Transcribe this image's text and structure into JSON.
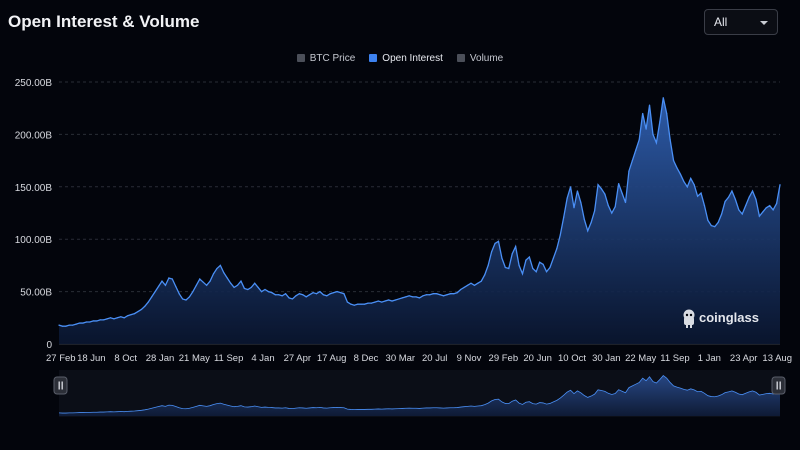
{
  "header": {
    "title": "Open Interest & Volume"
  },
  "range_select": {
    "value": "All"
  },
  "legend": [
    {
      "label": "BTC Price",
      "color": "#4b4f59",
      "active": false
    },
    {
      "label": "Open Interest",
      "color": "#3d82f0",
      "active": true
    },
    {
      "label": "Volume",
      "color": "#4b4f59",
      "active": false
    }
  ],
  "watermark": {
    "text": "coinglass"
  },
  "colors": {
    "line": "#4a8ff5",
    "fill_top": "#2f5fb0",
    "fill_bottom": "#0a1630",
    "grid": "#2a2d36",
    "axis_text": "#d8dae0"
  },
  "chart_data": {
    "type": "area",
    "xlabel": "",
    "ylabel": "",
    "ylim": [
      0,
      250
    ],
    "y_ticks": [
      0,
      50,
      100,
      150,
      200,
      250
    ],
    "y_tick_labels": [
      "0",
      "50.00B",
      "100.00B",
      "150.00B",
      "200.00B",
      "250.00B"
    ],
    "x_tick_labels": [
      "27 Feb",
      "18 Jun",
      "8 Oct",
      "28 Jan",
      "21 May",
      "11 Sep",
      "4 Jan",
      "27 Apr",
      "17 Aug",
      "8 Dec",
      "30 Mar",
      "20 Jul",
      "9 Nov",
      "29 Feb",
      "20 Jun",
      "10 Oct",
      "30 Jan",
      "22 May",
      "11 Sep",
      "1 Jan",
      "23 Apr",
      "13 Aug"
    ],
    "grid": true,
    "series": [
      {
        "name": "Open Interest",
        "unit": "B",
        "x": [
          0,
          1,
          2,
          3,
          4,
          5,
          6,
          7,
          8,
          9,
          10,
          11,
          12,
          13,
          14,
          15,
          16,
          17,
          18,
          19,
          20,
          21,
          22,
          23,
          24,
          25,
          26,
          27,
          28,
          29,
          30,
          31,
          32,
          33,
          34,
          35,
          36,
          37,
          38,
          39,
          40,
          41,
          42,
          43,
          44,
          45,
          46,
          47,
          48,
          49,
          50,
          51,
          52,
          53,
          54,
          55,
          56,
          57,
          58,
          59,
          60,
          61,
          62,
          63,
          64,
          65,
          66,
          67,
          68,
          69,
          70,
          71,
          72,
          73,
          74,
          75,
          76,
          77,
          78,
          79,
          80,
          81,
          82,
          83,
          84,
          85,
          86,
          87,
          88,
          89,
          90,
          91,
          92,
          93,
          94,
          95,
          96,
          97,
          98,
          99,
          100,
          101,
          102,
          103,
          104,
          105,
          106,
          107,
          108,
          109,
          110,
          111,
          112,
          113,
          114,
          115,
          116,
          117,
          118,
          119,
          120,
          121,
          122,
          123,
          124,
          125,
          126,
          127,
          128,
          129,
          130,
          131,
          132,
          133,
          134,
          135,
          136,
          137,
          138,
          139,
          140,
          141,
          142,
          143,
          144,
          145,
          146,
          147,
          148,
          149,
          150,
          151,
          152,
          153,
          154,
          155,
          156,
          157,
          158,
          159,
          160,
          161,
          162,
          163,
          164,
          165,
          166,
          167,
          168,
          169,
          170,
          171,
          172,
          173,
          174,
          175,
          176,
          177,
          178,
          179,
          180,
          181,
          182,
          183,
          184,
          185,
          186,
          187,
          188,
          189,
          190,
          191,
          192,
          193,
          194,
          195,
          196,
          197,
          198,
          199,
          200,
          201,
          202,
          203,
          204,
          205,
          206,
          207,
          208,
          209,
          210
        ],
        "values": [
          18,
          17,
          17,
          18,
          18,
          19,
          20,
          20,
          21,
          21,
          22,
          22,
          23,
          23,
          24,
          25,
          24,
          25,
          26,
          25,
          27,
          28,
          29,
          31,
          33,
          36,
          40,
          45,
          50,
          55,
          60,
          56,
          63,
          62,
          55,
          48,
          43,
          42,
          45,
          50,
          56,
          62,
          59,
          56,
          60,
          67,
          72,
          75,
          68,
          63,
          58,
          54,
          56,
          60,
          53,
          52,
          54,
          58,
          54,
          50,
          52,
          50,
          49,
          47,
          47,
          46,
          48,
          44,
          43,
          46,
          48,
          47,
          45,
          47,
          49,
          48,
          50,
          47,
          46,
          48,
          49,
          50,
          49,
          48,
          40,
          38,
          37,
          38,
          38,
          38,
          39,
          39,
          40,
          41,
          40,
          41,
          42,
          41,
          42,
          43,
          44,
          45,
          46,
          45,
          45,
          44,
          46,
          47,
          47,
          48,
          48,
          47,
          46,
          47,
          48,
          48,
          49,
          52,
          54,
          56,
          58,
          56,
          58,
          60,
          66,
          75,
          88,
          96,
          98,
          82,
          73,
          72,
          86,
          93,
          75,
          67,
          80,
          83,
          72,
          69,
          78,
          76,
          69,
          73,
          82,
          91,
          104,
          121,
          139,
          150,
          130,
          146,
          135,
          119,
          108,
          116,
          127,
          152,
          148,
          143,
          132,
          125,
          131,
          153,
          144,
          135,
          165,
          175,
          185,
          195,
          220,
          205,
          228,
          200,
          192,
          212,
          235,
          220,
          195,
          175,
          168,
          162,
          155,
          150,
          158,
          152,
          141,
          144,
          132,
          118,
          113,
          112,
          116,
          124,
          136,
          140,
          146,
          138,
          128,
          124,
          132,
          140,
          146,
          138,
          122,
          126,
          130,
          132,
          128,
          134,
          152
        ]
      }
    ]
  }
}
